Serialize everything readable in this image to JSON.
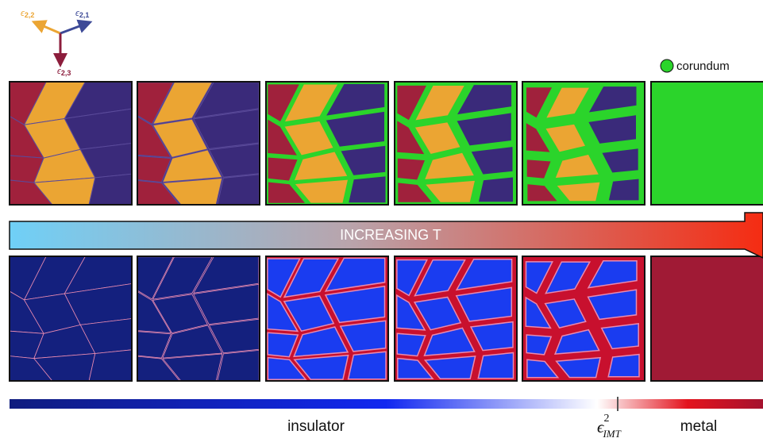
{
  "axis_labels": [
    {
      "symbol": "ϵ",
      "sub": "2,2"
    },
    {
      "symbol": "ϵ",
      "sub": "2,1"
    },
    {
      "symbol": "ϵ",
      "sub": "2,3"
    }
  ],
  "legend": {
    "label": "corundum"
  },
  "arrow": {
    "label": "INCREASING T"
  },
  "colorbar": {
    "left_label": "insulator",
    "threshold": {
      "symbol": "ϵ",
      "sup": "2",
      "sub": "IMT"
    },
    "right_label": "metal"
  }
}
